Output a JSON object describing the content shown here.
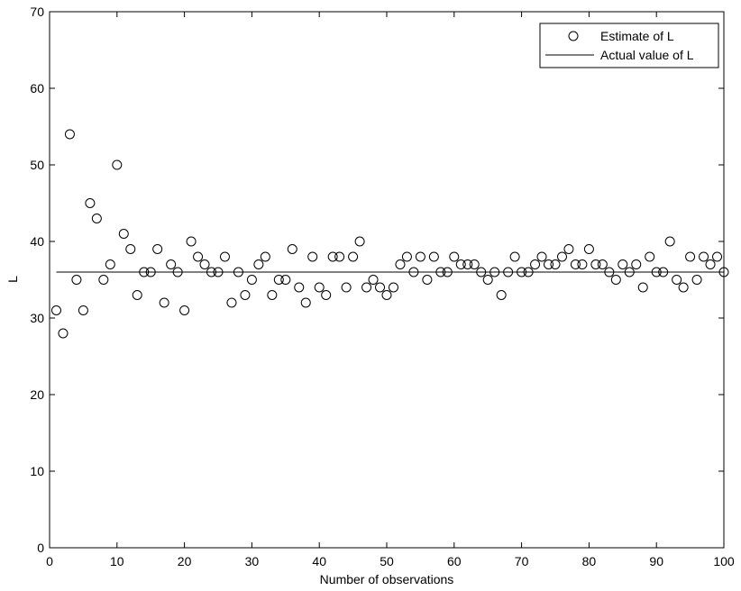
{
  "chart_data": {
    "type": "scatter",
    "title": "",
    "xlabel": "Number of observations",
    "ylabel": "L",
    "xlim": [
      0,
      100
    ],
    "ylim": [
      0,
      70
    ],
    "xticks": [
      0,
      10,
      20,
      30,
      40,
      50,
      60,
      70,
      80,
      90,
      100
    ],
    "yticks": [
      0,
      10,
      20,
      30,
      40,
      50,
      60,
      70
    ],
    "grid": false,
    "legend_position": "top-right",
    "series": [
      {
        "name": "Estimate of L",
        "marker": "open-circle",
        "color": "#000000",
        "x": [
          1,
          2,
          3,
          4,
          5,
          6,
          7,
          8,
          9,
          10,
          11,
          12,
          13,
          14,
          15,
          16,
          17,
          18,
          19,
          20,
          21,
          22,
          23,
          24,
          25,
          26,
          27,
          28,
          29,
          30,
          31,
          32,
          33,
          34,
          35,
          36,
          37,
          38,
          39,
          40,
          41,
          42,
          43,
          44,
          45,
          46,
          47,
          48,
          49,
          50,
          51,
          52,
          53,
          54,
          55,
          56,
          57,
          58,
          59,
          60,
          61,
          62,
          63,
          64,
          65,
          66,
          67,
          68,
          69,
          70,
          71,
          72,
          73,
          74,
          75,
          76,
          77,
          78,
          79,
          80,
          81,
          82,
          83,
          84,
          85,
          86,
          87,
          88,
          89,
          90,
          91,
          92,
          93,
          94,
          95,
          96,
          97,
          98,
          99,
          100
        ],
        "y": [
          31,
          28,
          54,
          35,
          31,
          45,
          43,
          35,
          37,
          50,
          41,
          39,
          33,
          36,
          36,
          39,
          32,
          37,
          36,
          31,
          40,
          38,
          37,
          36,
          36,
          38,
          32,
          36,
          33,
          35,
          37,
          38,
          33,
          35,
          35,
          39,
          34,
          32,
          38,
          34,
          33,
          38,
          38,
          34,
          38,
          40,
          34,
          35,
          34,
          33,
          34,
          37,
          38,
          36,
          38,
          35,
          38,
          36,
          36,
          38,
          37,
          37,
          37,
          36,
          35,
          36,
          33,
          36,
          38,
          36,
          36,
          37,
          38,
          37,
          37,
          38,
          39,
          37,
          37,
          39,
          37,
          37,
          36,
          35,
          37,
          36,
          37,
          34,
          38,
          36,
          36,
          40,
          35,
          34,
          38,
          35,
          38,
          37,
          38,
          36
        ]
      },
      {
        "name": "Actual value of L",
        "style": "line",
        "color": "#000000",
        "value": 36
      }
    ]
  }
}
